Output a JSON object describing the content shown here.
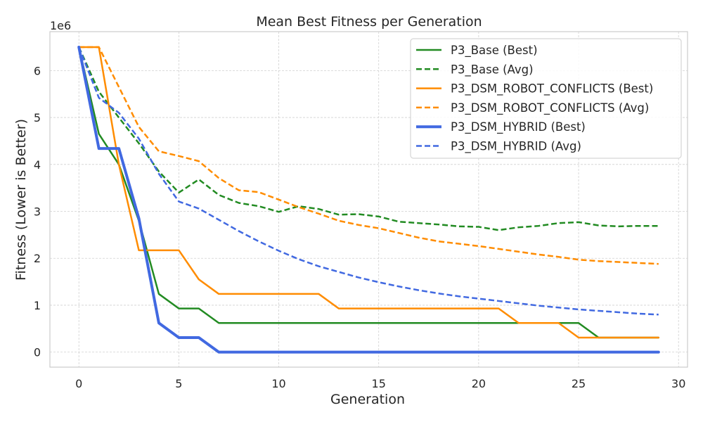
{
  "chart_data": {
    "type": "line",
    "title": "Mean Best Fitness per Generation",
    "xlabel": "Generation",
    "ylabel": "Fitness (Lower is Better)",
    "y_scale_label": "1e6",
    "y_scale": 1000000,
    "xlim": [
      -1.45,
      30.45
    ],
    "ylim": [
      -320000,
      6830000
    ],
    "x_ticks": [
      0,
      5,
      10,
      15,
      20,
      25,
      30
    ],
    "y_ticks": [
      0,
      1,
      2,
      3,
      4,
      5,
      6
    ],
    "grid": true,
    "legend_position": "top-right",
    "x": [
      0,
      1,
      2,
      3,
      4,
      5,
      6,
      7,
      8,
      9,
      10,
      11,
      12,
      13,
      14,
      15,
      16,
      17,
      18,
      19,
      20,
      21,
      22,
      23,
      24,
      25,
      26,
      27,
      28,
      29
    ],
    "series": [
      {
        "name": "P3_Base (Best)",
        "color": "#228B22",
        "style": "solid",
        "width": 2.5,
        "values": [
          6500000,
          4650000,
          4000000,
          2800000,
          1240000,
          930000,
          930000,
          620000,
          620000,
          620000,
          620000,
          620000,
          620000,
          620000,
          620000,
          620000,
          620000,
          620000,
          620000,
          620000,
          620000,
          620000,
          620000,
          620000,
          620000,
          620000,
          310000,
          310000,
          310000,
          310000
        ]
      },
      {
        "name": "P3_Base (Avg)",
        "color": "#228B22",
        "style": "dashed",
        "width": 2.5,
        "values": [
          6500000,
          5550000,
          5000000,
          4450000,
          3850000,
          3400000,
          3680000,
          3350000,
          3180000,
          3110000,
          2990000,
          3110000,
          3050000,
          2930000,
          2940000,
          2890000,
          2780000,
          2750000,
          2720000,
          2680000,
          2670000,
          2600000,
          2660000,
          2690000,
          2750000,
          2770000,
          2700000,
          2680000,
          2690000,
          2690000
        ]
      },
      {
        "name": "P3_DSM_ROBOT_CONFLICTS (Best)",
        "color": "#FF8C00",
        "style": "solid",
        "width": 2.5,
        "values": [
          6500000,
          6500000,
          4000000,
          2170000,
          2170000,
          2170000,
          1550000,
          1240000,
          1240000,
          1240000,
          1240000,
          1240000,
          1240000,
          930000,
          930000,
          930000,
          930000,
          930000,
          930000,
          930000,
          930000,
          930000,
          620000,
          620000,
          620000,
          310000,
          310000,
          310000,
          310000,
          310000
        ]
      },
      {
        "name": "P3_DSM_ROBOT_CONFLICTS (Avg)",
        "color": "#FF8C00",
        "style": "dashed",
        "width": 2.5,
        "values": [
          6500000,
          6500000,
          5650000,
          4800000,
          4280000,
          4180000,
          4070000,
          3710000,
          3450000,
          3410000,
          3250000,
          3090000,
          2950000,
          2800000,
          2710000,
          2640000,
          2540000,
          2440000,
          2360000,
          2310000,
          2260000,
          2200000,
          2140000,
          2080000,
          2030000,
          1970000,
          1940000,
          1920000,
          1900000,
          1880000
        ]
      },
      {
        "name": "P3_DSM_HYBRID (Best)",
        "color": "#4169E1",
        "style": "solid",
        "width": 4,
        "values": [
          6500000,
          4340000,
          4340000,
          2850000,
          620000,
          310000,
          310000,
          0,
          0,
          0,
          0,
          0,
          0,
          0,
          0,
          0,
          0,
          0,
          0,
          0,
          0,
          0,
          0,
          0,
          0,
          0,
          0,
          0,
          0,
          0
        ]
      },
      {
        "name": "P3_DSM_HYBRID (Avg)",
        "color": "#4169E1",
        "style": "dashed",
        "width": 2.5,
        "values": [
          6500000,
          5420000,
          5100000,
          4550000,
          3800000,
          3210000,
          3060000,
          2820000,
          2580000,
          2360000,
          2160000,
          1980000,
          1830000,
          1710000,
          1590000,
          1490000,
          1400000,
          1320000,
          1250000,
          1190000,
          1140000,
          1090000,
          1040000,
          990000,
          950000,
          910000,
          880000,
          850000,
          820000,
          800000
        ]
      }
    ]
  }
}
